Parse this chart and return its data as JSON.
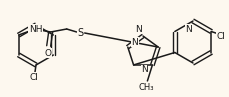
{
  "background_color": "#fdf8ef",
  "bond_color": "#1a1a1a",
  "text_color": "#1a1a1a",
  "figsize": [
    2.29,
    0.97
  ],
  "dpi": 100,
  "xlim": [
    0,
    229
  ],
  "ylim": [
    0,
    97
  ]
}
